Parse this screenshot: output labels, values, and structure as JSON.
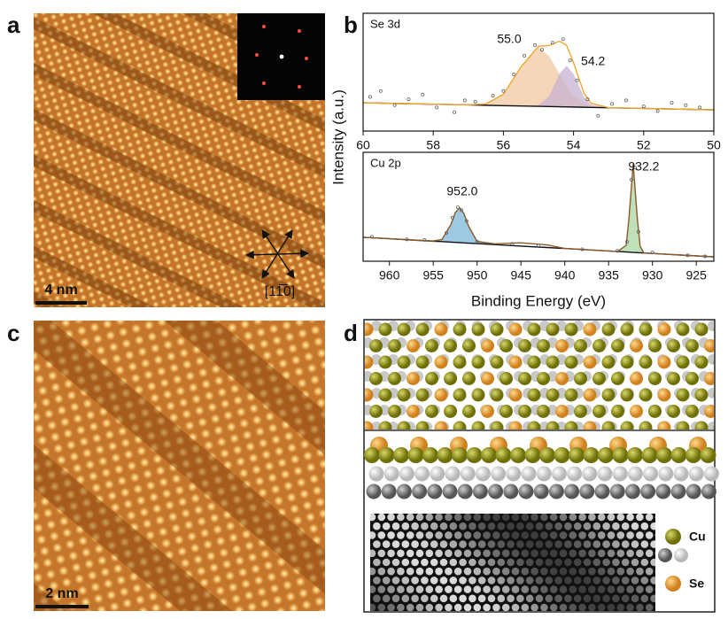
{
  "panel_labels": [
    "a",
    "b",
    "c",
    "d"
  ],
  "panel_a": {
    "scale_bar": "4 nm",
    "direction": "[11̅0]"
  },
  "panel_c": {
    "scale_bar": "2 nm"
  },
  "panel_d": {
    "legend": [
      "Cu",
      "Se"
    ]
  },
  "chart_data": [
    {
      "type": "line",
      "title": "Se 3d",
      "ylabel": "Intensity (a.u.)",
      "xlim": [
        60,
        50
      ],
      "xticks": [
        60,
        58,
        56,
        54,
        52,
        50
      ],
      "ylim": [
        0,
        10
      ],
      "annotations": [
        {
          "text": "55.0",
          "x": 55.0
        },
        {
          "text": "54.2",
          "x": 54.2
        }
      ],
      "series": [
        {
          "mark": "line",
          "color": "#111111",
          "x": [
            60,
            59,
            58,
            57,
            56.5,
            56,
            55.5,
            55,
            54.7,
            54.4,
            54.2,
            54,
            53.7,
            53.5,
            53,
            52,
            51,
            50
          ],
          "values": [
            2.4,
            2.34,
            2.28,
            2.22,
            2.19,
            2.16,
            2.13,
            2.1,
            2.08,
            2.06,
            2.05,
            2.04,
            2.02,
            2.01,
            1.98,
            1.92,
            1.86,
            1.8
          ]
        },
        {
          "mark": "area",
          "color": "#f2c8a0",
          "x": [
            57,
            56.5,
            56,
            55.5,
            55,
            54.7,
            54.4,
            54.2,
            54,
            53.7,
            53.5,
            53
          ],
          "values": [
            2.22,
            2.31,
            3.12,
            5.44,
            7.1,
            6.39,
            4.82,
            3.79,
            3.0,
            2.33,
            2.13,
            1.99
          ]
        },
        {
          "mark": "area",
          "color": "#c7b2d2",
          "x": [
            55.5,
            55,
            54.7,
            54.4,
            54.2,
            54,
            53.7,
            53.5,
            53
          ],
          "values": [
            2.13,
            2.2,
            2.95,
            4.86,
            5.55,
            4.84,
            2.89,
            2.24,
            1.98
          ]
        },
        {
          "mark": "line",
          "color": "#f0a830",
          "x": [
            60,
            59,
            58,
            57,
            56.5,
            56,
            55.5,
            55,
            54.7,
            54.4,
            54.2,
            54,
            53.7,
            53.5,
            53,
            52,
            51,
            50
          ],
          "values": [
            2.4,
            2.34,
            2.28,
            2.22,
            2.31,
            3.12,
            5.44,
            7.2,
            7.26,
            7.62,
            7.29,
            5.8,
            3.2,
            2.36,
            1.99,
            1.92,
            1.86,
            1.8
          ]
        },
        {
          "mark": "points",
          "color": "#666666",
          "x": [
            59.8,
            59.5,
            59.1,
            58.7,
            58.3,
            57.9,
            57.4,
            57.1,
            56.8,
            56.3,
            56.0,
            55.7,
            55.4,
            55.1,
            54.9,
            54.6,
            54.3,
            54.1,
            53.9,
            53.6,
            53.3,
            52.9,
            52.5,
            52.0,
            51.6,
            51.2,
            50.8,
            50.4
          ],
          "values": [
            2.9,
            3.4,
            2.2,
            2.7,
            3.1,
            2.0,
            1.6,
            2.6,
            2.5,
            3.0,
            3.4,
            4.8,
            6.4,
            7.3,
            6.9,
            7.5,
            7.8,
            6.0,
            4.3,
            2.7,
            1.3,
            2.3,
            2.6,
            2.1,
            1.7,
            2.4,
            2.2,
            2.0
          ]
        }
      ]
    },
    {
      "type": "line",
      "title": "Cu 2p",
      "xlabel": "Binding Energy (eV)",
      "xlim": [
        963,
        923
      ],
      "xticks": [
        960,
        955,
        950,
        945,
        940,
        935,
        930,
        925
      ],
      "ylim": [
        0,
        10
      ],
      "annotations": [
        {
          "text": "952.0",
          "x": 952.0
        },
        {
          "text": "932.2",
          "x": 932.2
        }
      ],
      "series": [
        {
          "mark": "line",
          "color": "#111111",
          "x": [
            963,
            960,
            957,
            955,
            954,
            953,
            952.5,
            952,
            951.5,
            951,
            950,
            948,
            945,
            942,
            940,
            937,
            935,
            934,
            933,
            932.7,
            932.2,
            931.7,
            931.4,
            931,
            930,
            927,
            923
          ],
          "values": [
            2.2,
            2.07,
            1.93,
            1.84,
            1.8,
            1.75,
            1.73,
            1.71,
            1.68,
            1.66,
            1.62,
            1.53,
            1.39,
            1.26,
            1.17,
            1.03,
            0.94,
            0.9,
            0.85,
            0.84,
            0.81,
            0.79,
            0.78,
            0.76,
            0.72,
            0.58,
            0.4
          ]
        },
        {
          "mark": "area",
          "color": "#7db7da",
          "x": [
            955,
            954,
            953,
            952.5,
            952,
            951.5,
            951,
            950,
            948
          ],
          "values": [
            1.86,
            2.0,
            3.35,
            4.43,
            4.91,
            4.38,
            3.26,
            1.82,
            1.53
          ]
        },
        {
          "mark": "area",
          "color": "#a9d6a2",
          "x": [
            934,
            933,
            932.7,
            932.2,
            931.7,
            931.4,
            931
          ],
          "values": [
            0.9,
            1.45,
            3.74,
            8.91,
            3.69,
            1.38,
            0.78
          ]
        },
        {
          "mark": "line",
          "color": "#8b5a2b",
          "x": [
            963,
            960,
            957,
            955,
            954,
            953,
            952.5,
            952,
            951.5,
            951,
            950,
            948,
            945,
            942,
            940,
            937,
            935,
            934,
            933,
            932.7,
            932.2,
            931.7,
            931.4,
            931,
            930,
            927,
            923
          ],
          "values": [
            2.2,
            2.07,
            1.93,
            1.86,
            2.0,
            3.35,
            4.43,
            4.91,
            4.38,
            3.26,
            1.82,
            1.6,
            1.69,
            1.5,
            1.17,
            1.03,
            0.94,
            0.9,
            1.45,
            3.74,
            8.91,
            3.69,
            1.38,
            0.78,
            0.72,
            0.58,
            0.4
          ]
        },
        {
          "mark": "points",
          "color": "#666666",
          "x": [
            962,
            958,
            956,
            953.5,
            952.8,
            952.2,
            951.8,
            951.2,
            950,
            946,
            943,
            938,
            934,
            932.9,
            932.4,
            932,
            931.6,
            930,
            926,
            924
          ],
          "values": [
            2.25,
            2.0,
            1.95,
            2.6,
            4.0,
            4.95,
            4.7,
            3.7,
            1.8,
            1.6,
            1.45,
            1.1,
            0.95,
            1.8,
            7.5,
            8.6,
            2.7,
            0.8,
            0.55,
            0.45
          ]
        }
      ]
    }
  ]
}
